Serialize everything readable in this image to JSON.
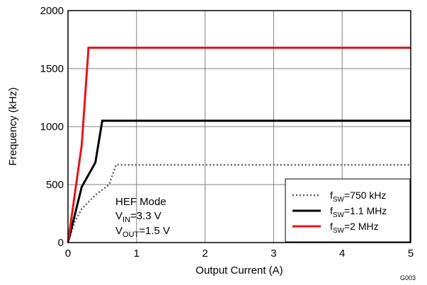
{
  "chart_data": {
    "type": "line",
    "xlabel": "Output Current (A)",
    "ylabel": "Frequency (kHz)",
    "xlim": [
      0,
      5
    ],
    "ylim": [
      0,
      2000
    ],
    "x_ticks": [
      "0",
      "1",
      "2",
      "3",
      "4",
      "5"
    ],
    "y_ticks": [
      "0",
      "500",
      "1000",
      "1500",
      "2000"
    ],
    "grid": true,
    "legend_placement": "bottom-right",
    "series": [
      {
        "sub": "SW",
        "value_text": "=750 kHz",
        "color": "#606060",
        "style": "dotted",
        "x": [
          0,
          0.1,
          0.2,
          0.3,
          0.4,
          0.5,
          0.6,
          0.7,
          5
        ],
        "y": [
          0,
          180,
          290,
          350,
          410,
          455,
          500,
          670,
          670
        ]
      },
      {
        "sub": "SW",
        "value_text": "=1.1 MHz",
        "color": "#000000",
        "style": "solid",
        "x": [
          0,
          0.2,
          0.4,
          0.5,
          5
        ],
        "y": [
          0,
          480,
          690,
          1050,
          1050
        ]
      },
      {
        "sub": "SW",
        "value_text": "=2 MHz",
        "color": "#e8141c",
        "style": "solid",
        "x": [
          0,
          0.2,
          0.3,
          5
        ],
        "y": [
          0,
          840,
          1680,
          1680
        ]
      }
    ],
    "annotations": {
      "mode": "HEF Mode",
      "vin_main": "V",
      "vin_sub": "IN",
      "vin_value": "=3.3 V",
      "vout_main": "V",
      "vout_sub": "OUT",
      "vout_value": "=1.5 V"
    },
    "figure_code": "G003"
  }
}
